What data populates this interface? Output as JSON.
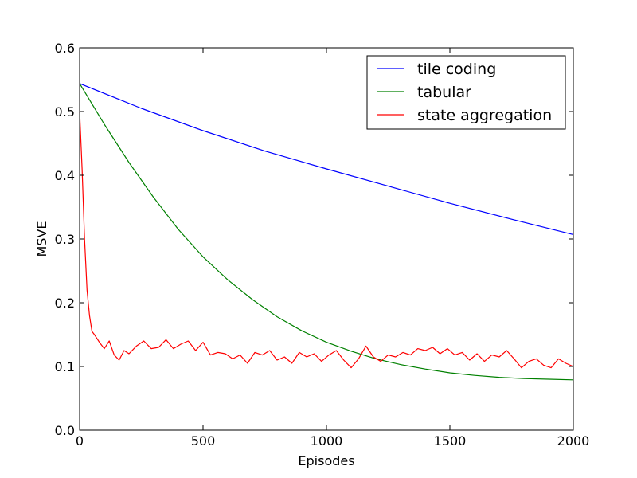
{
  "chart_data": {
    "type": "line",
    "title": "",
    "xlabel": "Episodes",
    "ylabel": "MSVE",
    "xlim": [
      0,
      2000
    ],
    "ylim": [
      0.0,
      0.6
    ],
    "xticks": [
      0,
      500,
      1000,
      1500,
      2000
    ],
    "xtick_labels": [
      "0",
      "500",
      "1000",
      "1500",
      "2000"
    ],
    "yticks": [
      0.0,
      0.1,
      0.2,
      0.3,
      0.4,
      0.5,
      0.6
    ],
    "ytick_labels": [
      "0.0",
      "0.1",
      "0.2",
      "0.3",
      "0.4",
      "0.5",
      "0.6"
    ],
    "grid": false,
    "legend_position": "top-right",
    "series": [
      {
        "name": "tile coding",
        "color": "#0000ff",
        "x": [
          0,
          250,
          500,
          750,
          1000,
          1250,
          1500,
          1750,
          2000
        ],
        "values": [
          0.544,
          0.505,
          0.47,
          0.438,
          0.41,
          0.383,
          0.356,
          0.331,
          0.307
        ]
      },
      {
        "name": "tabular",
        "color": "#008000",
        "x": [
          0,
          100,
          200,
          300,
          400,
          500,
          600,
          700,
          800,
          900,
          1000,
          1100,
          1200,
          1300,
          1400,
          1500,
          1600,
          1700,
          1800,
          1900,
          2000
        ],
        "values": [
          0.544,
          0.48,
          0.42,
          0.365,
          0.315,
          0.272,
          0.236,
          0.205,
          0.178,
          0.156,
          0.138,
          0.124,
          0.112,
          0.103,
          0.096,
          0.09,
          0.086,
          0.083,
          0.081,
          0.08,
          0.079
        ]
      },
      {
        "name": "state aggregation",
        "color": "#ff0000",
        "x": [
          0,
          10,
          20,
          30,
          40,
          50,
          60,
          80,
          100,
          120,
          140,
          160,
          180,
          200,
          230,
          260,
          290,
          320,
          350,
          380,
          410,
          440,
          470,
          500,
          530,
          560,
          590,
          620,
          650,
          680,
          710,
          740,
          770,
          800,
          830,
          860,
          890,
          920,
          950,
          980,
          1010,
          1040,
          1070,
          1100,
          1130,
          1160,
          1190,
          1220,
          1250,
          1280,
          1310,
          1340,
          1370,
          1400,
          1430,
          1460,
          1490,
          1520,
          1550,
          1580,
          1610,
          1640,
          1670,
          1700,
          1730,
          1760,
          1790,
          1820,
          1850,
          1880,
          1910,
          1940,
          1970,
          2000
        ],
        "values": [
          0.5,
          0.41,
          0.3,
          0.22,
          0.18,
          0.155,
          0.15,
          0.138,
          0.128,
          0.14,
          0.118,
          0.11,
          0.125,
          0.12,
          0.132,
          0.14,
          0.128,
          0.13,
          0.142,
          0.128,
          0.135,
          0.14,
          0.125,
          0.138,
          0.118,
          0.122,
          0.12,
          0.112,
          0.118,
          0.105,
          0.122,
          0.118,
          0.125,
          0.11,
          0.115,
          0.105,
          0.122,
          0.115,
          0.12,
          0.108,
          0.118,
          0.125,
          0.11,
          0.098,
          0.112,
          0.132,
          0.115,
          0.108,
          0.118,
          0.115,
          0.122,
          0.118,
          0.128,
          0.125,
          0.13,
          0.12,
          0.128,
          0.118,
          0.122,
          0.11,
          0.12,
          0.108,
          0.118,
          0.115,
          0.125,
          0.112,
          0.098,
          0.108,
          0.112,
          0.102,
          0.098,
          0.112,
          0.105,
          0.1
        ]
      }
    ]
  }
}
